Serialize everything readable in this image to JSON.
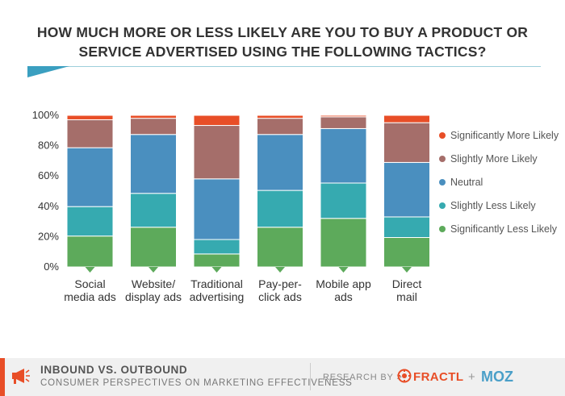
{
  "header": {
    "title_line1": "HOW MUCH MORE OR LESS LIKELY ARE YOU TO BUY A PRODUCT OR",
    "title_line2": "SERVICE  ADVERTISED USING THE FOLLOWING TACTICS?"
  },
  "colors": {
    "sig_more": "#e84e27",
    "slight_more": "#a56e6a",
    "neutral": "#4a8fbf",
    "slight_less": "#36aab0",
    "sig_less": "#5daa5b",
    "axis_text": "#333333",
    "legend_text": "#555555"
  },
  "chart_data": {
    "type": "bar",
    "stacked": true,
    "title": "HOW MUCH MORE OR LESS LIKELY ARE YOU TO BUY A PRODUCT OR SERVICE  ADVERTISED USING THE FOLLOWING TACTICS?",
    "categories": [
      [
        "Social",
        "media ads"
      ],
      [
        "Website/",
        "display ads"
      ],
      [
        "Traditional",
        "advertising"
      ],
      [
        "Pay-per-",
        "click ads"
      ],
      [
        "Mobile app",
        "ads"
      ],
      [
        "Direct",
        "mail"
      ]
    ],
    "y_ticks": [
      "0%",
      "20%",
      "40%",
      "60%",
      "80%",
      "100%"
    ],
    "ylim": [
      0,
      100
    ],
    "series": [
      {
        "name": "Significantly Less Likely",
        "values": [
          21,
          27,
          9,
          27,
          33,
          20
        ]
      },
      {
        "name": "Slightly Less Likely",
        "values": [
          20,
          23,
          10,
          25,
          24,
          14
        ]
      },
      {
        "name": "Neutral",
        "values": [
          40,
          40,
          42,
          38,
          37,
          37
        ]
      },
      {
        "name": "Slightly More Likely",
        "values": [
          19,
          11,
          37,
          11,
          8,
          27
        ]
      },
      {
        "name": "Significantly More Likely",
        "values": [
          3,
          2,
          7,
          2,
          1,
          5
        ]
      }
    ],
    "legend_order": [
      "Significantly More Likely",
      "Slightly More Likely",
      "Neutral",
      "Slightly Less Likely",
      "Significantly Less Likely"
    ],
    "legend_position": "right",
    "grid": false
  },
  "footer": {
    "heading": "INBOUND VS. OUTBOUND",
    "subheading": "CONSUMER PERSPECTIVES ON MARKETING EFFECTIVENESS",
    "research_by": "RESEARCH BY",
    "chevron": ">",
    "fractl": "FRACTL",
    "plus": "+",
    "moz": "MOZ"
  }
}
